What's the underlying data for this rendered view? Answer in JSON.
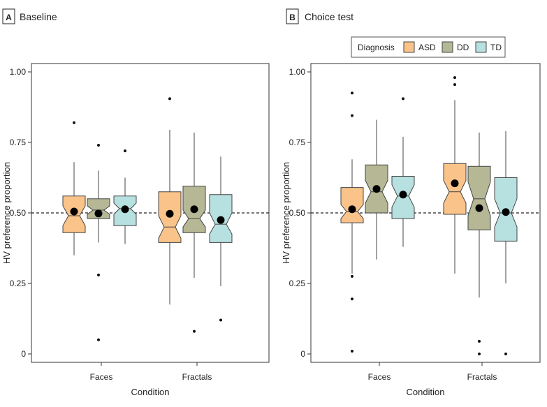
{
  "colors": {
    "ASD": "#F9C38A",
    "DD": "#B5B795",
    "TD": "#B7E0E0",
    "stroke": "#444444"
  },
  "chart_data": [
    {
      "type": "boxplot",
      "panel_letter": "A",
      "title": "Baseline",
      "xlabel": "Condition",
      "ylabel": "HV preference proportion",
      "ylim": [
        0,
        1
      ],
      "yticks": [
        "0",
        "0.25",
        "0.50",
        "0.75",
        "1.00"
      ],
      "reference_line": 0.5,
      "categories": [
        "Faces",
        "Fractals"
      ],
      "series": [
        {
          "name": "ASD",
          "boxes": [
            {
              "category": "Faces",
              "whisker_low": 0.35,
              "q1": 0.43,
              "median": 0.49,
              "q3": 0.56,
              "whisker_high": 0.68,
              "notch_low": 0.455,
              "notch_high": 0.525,
              "mean": 0.505,
              "outliers": [
                0.82
              ]
            },
            {
              "category": "Fractals",
              "whisker_low": 0.175,
              "q1": 0.395,
              "median": 0.45,
              "q3": 0.575,
              "whisker_high": 0.795,
              "notch_low": 0.41,
              "notch_high": 0.49,
              "mean": 0.497,
              "outliers": [
                0.905
              ]
            }
          ]
        },
        {
          "name": "DD",
          "boxes": [
            {
              "category": "Faces",
              "whisker_low": 0.395,
              "q1": 0.48,
              "median": 0.51,
              "q3": 0.55,
              "whisker_high": 0.65,
              "notch_low": 0.495,
              "notch_high": 0.525,
              "mean": 0.498,
              "outliers": [
                0.74,
                0.28,
                0.05
              ]
            },
            {
              "category": "Fractals",
              "whisker_low": 0.27,
              "q1": 0.43,
              "median": 0.48,
              "q3": 0.595,
              "whisker_high": 0.785,
              "notch_low": 0.45,
              "notch_high": 0.51,
              "mean": 0.513,
              "outliers": [
                0.08
              ]
            }
          ]
        },
        {
          "name": "TD",
          "boxes": [
            {
              "category": "Faces",
              "whisker_low": 0.39,
              "q1": 0.455,
              "median": 0.515,
              "q3": 0.56,
              "whisker_high": 0.625,
              "notch_low": 0.495,
              "notch_high": 0.535,
              "mean": 0.513,
              "outliers": [
                0.72
              ]
            },
            {
              "category": "Fractals",
              "whisker_low": 0.24,
              "q1": 0.395,
              "median": 0.46,
              "q3": 0.565,
              "whisker_high": 0.7,
              "notch_low": 0.425,
              "notch_high": 0.5,
              "mean": 0.475,
              "outliers": [
                0.12
              ]
            }
          ]
        }
      ]
    },
    {
      "type": "boxplot",
      "panel_letter": "B",
      "title": "Choice test",
      "xlabel": "Condition",
      "ylabel": "HV preference proportion",
      "ylim": [
        0,
        1
      ],
      "yticks": [
        "0",
        "0.25",
        "0.50",
        "0.75",
        "1.00"
      ],
      "reference_line": 0.5,
      "categories": [
        "Faces",
        "Fractals"
      ],
      "legend": {
        "title": "Diagnosis",
        "entries": [
          "ASD",
          "DD",
          "TD"
        ],
        "placement": "top-right"
      },
      "series": [
        {
          "name": "ASD",
          "boxes": [
            {
              "category": "Faces",
              "whisker_low": 0.285,
              "q1": 0.465,
              "median": 0.505,
              "q3": 0.59,
              "whisker_high": 0.69,
              "notch_low": 0.48,
              "notch_high": 0.53,
              "mean": 0.513,
              "outliers": [
                0.925,
                0.845,
                0.275,
                0.195,
                0.01
              ]
            },
            {
              "category": "Fractals",
              "whisker_low": 0.285,
              "q1": 0.495,
              "median": 0.575,
              "q3": 0.675,
              "whisker_high": 0.9,
              "notch_low": 0.535,
              "notch_high": 0.615,
              "mean": 0.605,
              "outliers": [
                0.98,
                0.955
              ]
            }
          ]
        },
        {
          "name": "DD",
          "boxes": [
            {
              "category": "Faces",
              "whisker_low": 0.335,
              "q1": 0.5,
              "median": 0.575,
              "q3": 0.67,
              "whisker_high": 0.83,
              "notch_low": 0.535,
              "notch_high": 0.615,
              "mean": 0.585,
              "outliers": []
            },
            {
              "category": "Fractals",
              "whisker_low": 0.2,
              "q1": 0.44,
              "median": 0.55,
              "q3": 0.665,
              "whisker_high": 0.785,
              "notch_low": 0.49,
              "notch_high": 0.61,
              "mean": 0.517,
              "outliers": [
                0.045,
                0.0
              ]
            }
          ]
        },
        {
          "name": "TD",
          "boxes": [
            {
              "category": "Faces",
              "whisker_low": 0.38,
              "q1": 0.48,
              "median": 0.56,
              "q3": 0.63,
              "whisker_high": 0.77,
              "notch_low": 0.52,
              "notch_high": 0.6,
              "mean": 0.565,
              "outliers": [
                0.905
              ]
            },
            {
              "category": "Fractals",
              "whisker_low": 0.25,
              "q1": 0.4,
              "median": 0.5,
              "q3": 0.625,
              "whisker_high": 0.79,
              "notch_low": 0.45,
              "notch_high": 0.55,
              "mean": 0.503,
              "outliers": [
                0.0
              ]
            }
          ]
        }
      ]
    }
  ]
}
